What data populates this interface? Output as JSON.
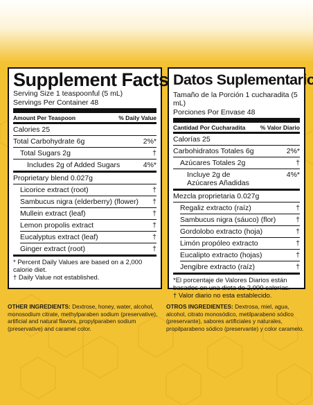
{
  "left": {
    "title": "Supplement Facts",
    "serving_size": "Serving Size 1 teaspoonful (5 mL)",
    "servings": "Servings Per Container 48",
    "header_amount": "Amount Per Teaspoon",
    "header_dv": "% Daily Value",
    "calories": "Calories 25",
    "carb": {
      "label": "Total Carbohydrate 6g",
      "value": "2%*"
    },
    "sugars": {
      "label": "Total Sugars 2g",
      "value": "†"
    },
    "added": {
      "label": "Includes 2g of Added Sugars",
      "value": "4%*"
    },
    "blend": "Proprietary blend  0.027g",
    "ingredients": [
      {
        "label": "Licorice extract (root)",
        "value": "†"
      },
      {
        "label": "Sambucus nigra (elderberry) (flower)",
        "value": "†"
      },
      {
        "label": "Mullein extract (leaf)",
        "value": "†"
      },
      {
        "label": "Lemon propolis extract",
        "value": "†"
      },
      {
        "label": "Eucalyptus extract (leaf)",
        "value": "†"
      },
      {
        "label": "Ginger extract (root)",
        "value": "†"
      }
    ],
    "foot1": "* Percent Daily Values are based on a 2,000 calorie diet.",
    "foot2": "† Daily Value not established.",
    "other_label": "OTHER INGREDIENTS:",
    "other_text": " Dextrose, honey, water, alcohol, monosodium citrate, methylparaben sodium (preservative), artificial and natural flavors, propylparaben sodium (preservative) and caramel color."
  },
  "right": {
    "title": "Datos Suplementarios",
    "serving_size": "Tamaño de la Porción 1 cucharadita (5 mL)",
    "servings": "Porciones Por Envase 48",
    "header_amount": "Cantidad Por Cucharadita",
    "header_dv": "% Valor Diario",
    "calories": "Calorías 25",
    "carb": {
      "label": "Carbohidratos Totales 6g",
      "value": "2%*"
    },
    "sugars": {
      "label": "Azúcares Totales 2g",
      "value": "†"
    },
    "added": {
      "label": "Incluye 2g de Azúcares Añadidas",
      "value": "4%*"
    },
    "blend": "Mezcla proprietaria  0.027g",
    "ingredients": [
      {
        "label": "Regaliz extracto (raíz)",
        "value": "†"
      },
      {
        "label": "Sambucus nigra (sáuco) (flor)",
        "value": "†"
      },
      {
        "label": "Gordolobo extracto (hoja)",
        "value": "†"
      },
      {
        "label": "Limón propóleo extracto",
        "value": "†"
      },
      {
        "label": "Eucalipto extracto (hojas)",
        "value": "†"
      },
      {
        "label": "Jengibre extracto (raíz)",
        "value": "†"
      }
    ],
    "foot1": "*El porcentaje de Valores Diarios están basados en una dieta de 2,000 calorías.",
    "foot2": "† Valor diario no esta establecido.",
    "other_label": "OTROS INGREDIENTES:",
    "other_text": " Dextrosa, miel, agua, alcohol, citrato monosódico, metilparabeno sódico (preservante), sabores artificiales y naturales, propilparabeno sódico (preservante) y color caramelo."
  }
}
